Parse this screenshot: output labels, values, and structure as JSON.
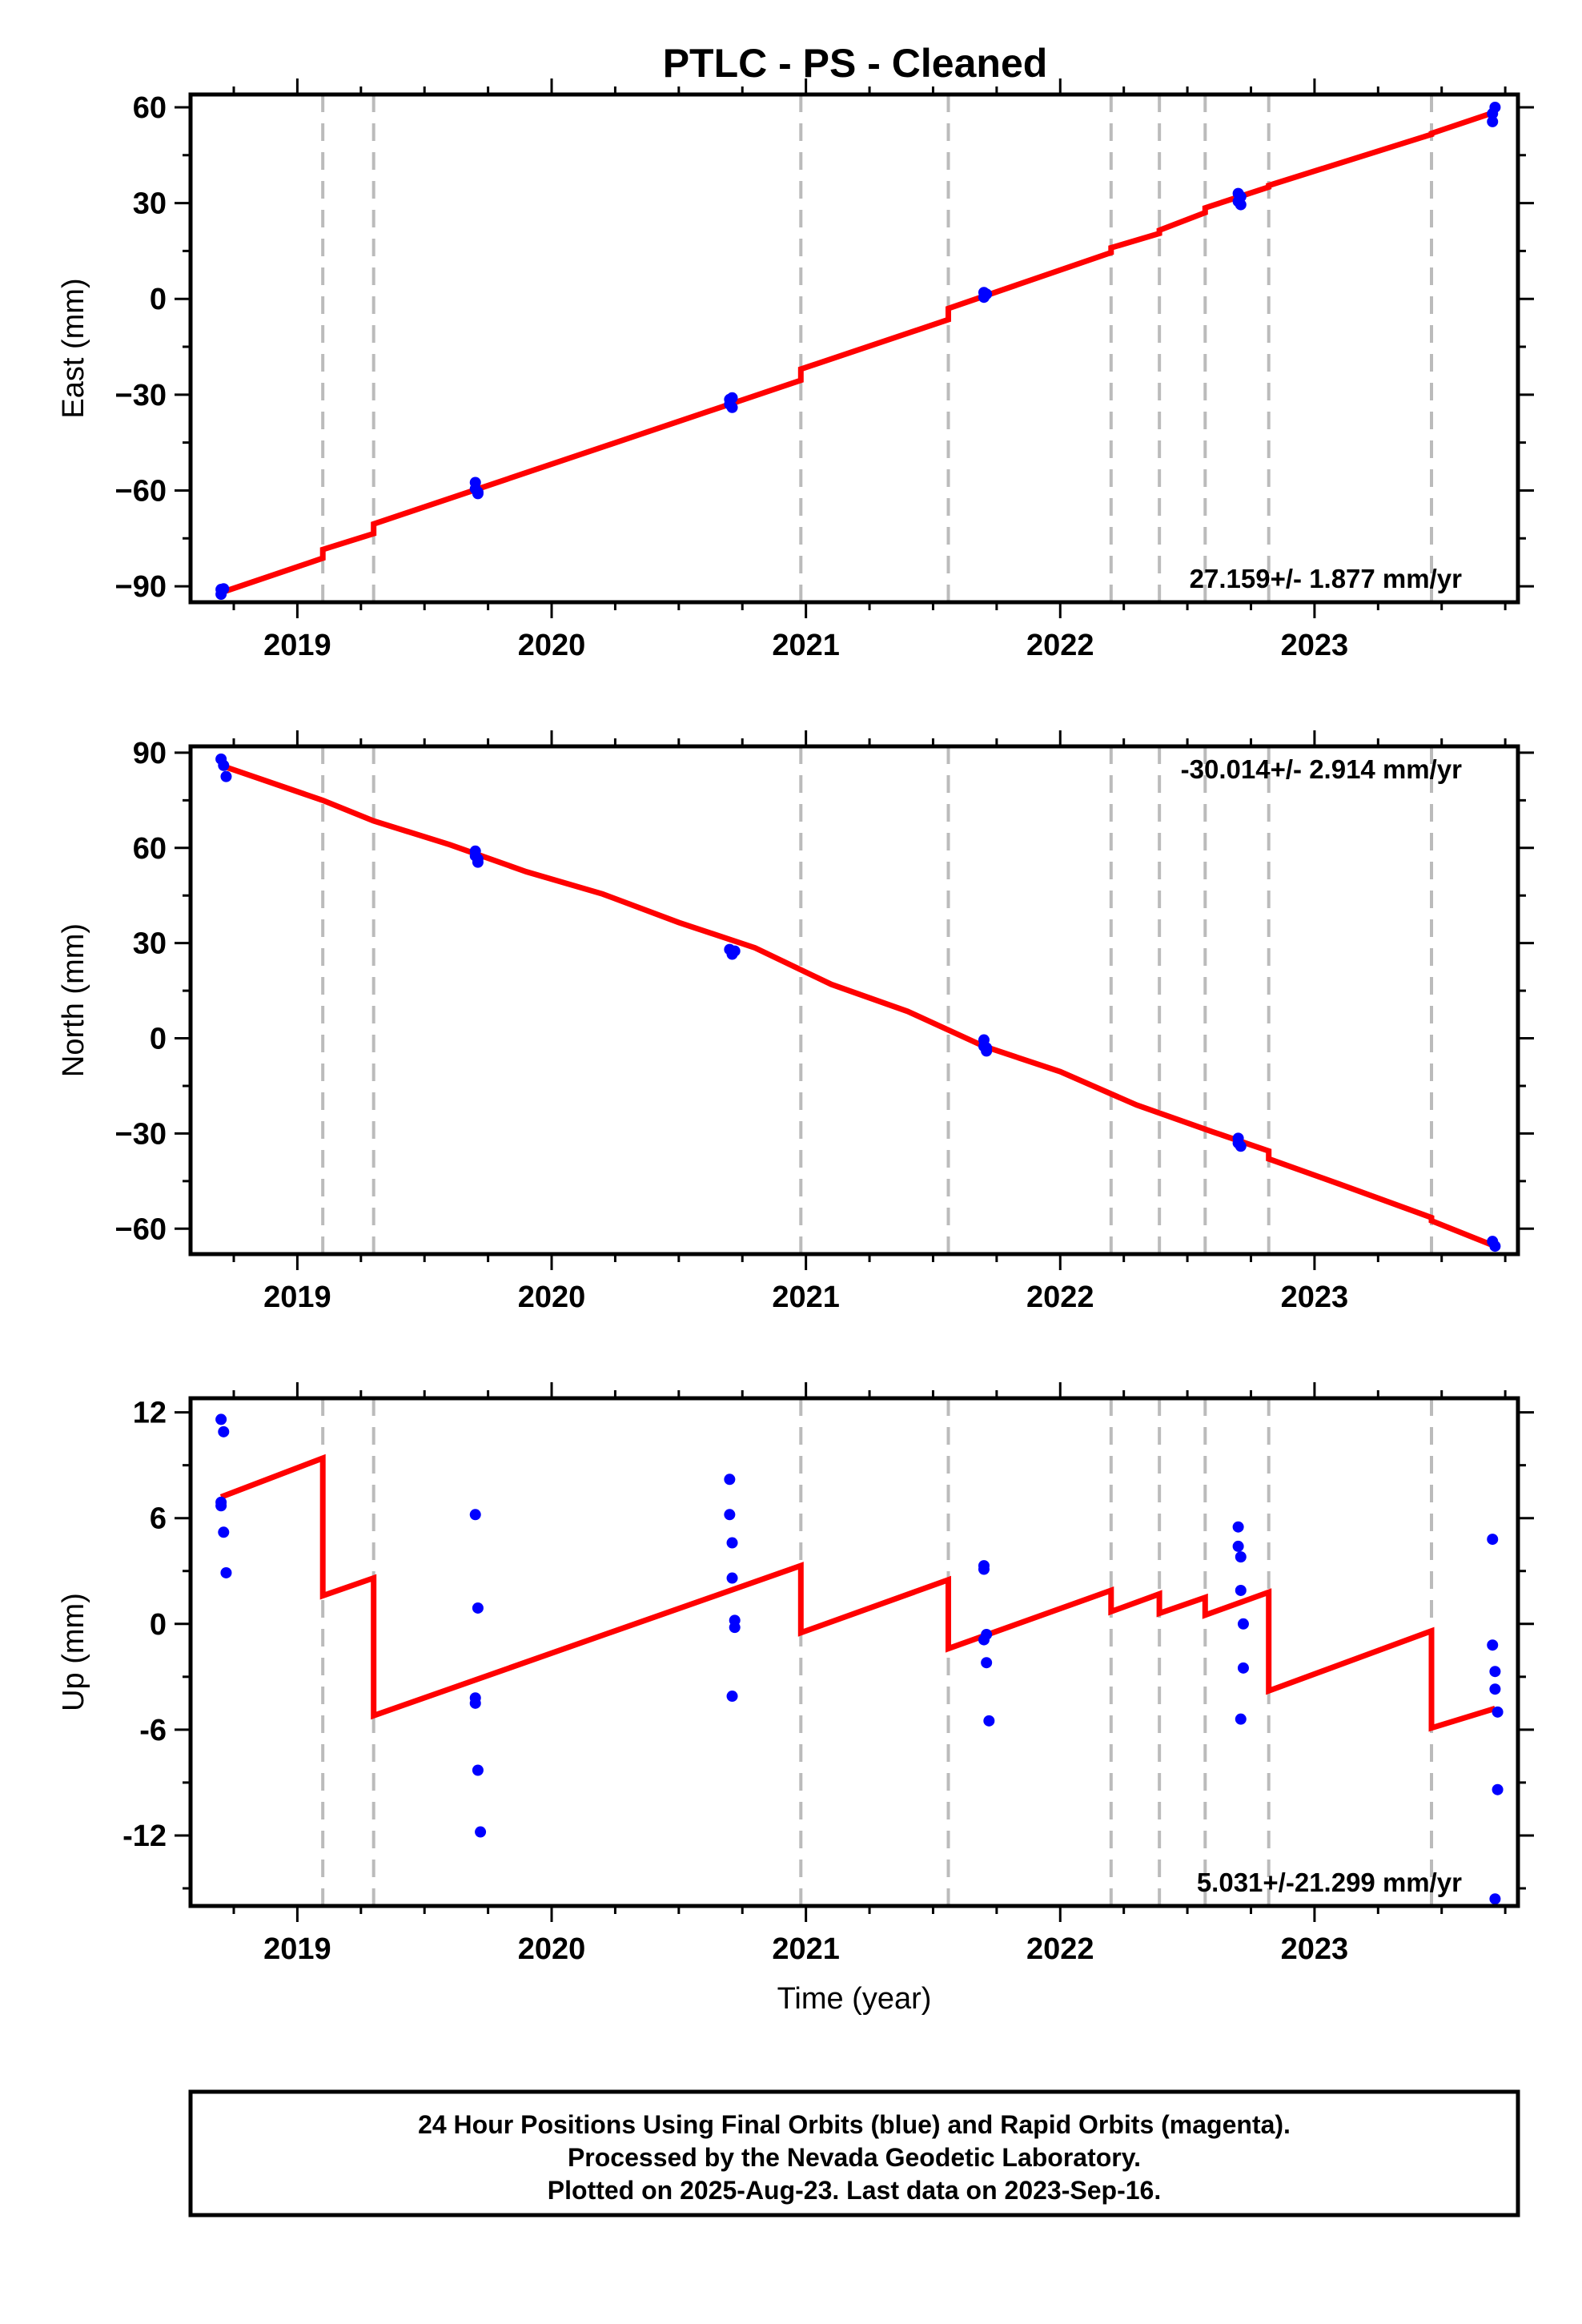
{
  "title": "PTLC  - PS - Cleaned",
  "footer": {
    "lines": [
      "24 Hour Positions Using Final Orbits (blue) and Rapid Orbits (magenta).",
      "Processed by the Nevada Geodetic Laboratory.",
      "Plotted on 2025-Aug-23. Last data on 2023-Sep-16."
    ]
  },
  "colors": {
    "final_orbit_points": "#0000ff",
    "rapid_orbit_points": "#ff00ff",
    "model_line": "#ff0000",
    "offset_lines": "#bbbbbb",
    "axes": "#000000"
  },
  "chart_data": [
    {
      "type": "scatter",
      "panel": "east",
      "ylabel": "East (mm)",
      "xlabel": "",
      "rate_text": "27.159+/- 1.877 mm/yr",
      "xlim": [
        2018.58,
        2023.8
      ],
      "ylim": [
        -95,
        64
      ],
      "xticks": [
        2019,
        2020,
        2021,
        2022,
        2023
      ],
      "xtick_labels": [
        "2019",
        "2020",
        "2021",
        "2022",
        "2023"
      ],
      "yticks": [
        -90,
        -60,
        -30,
        0,
        30,
        60
      ],
      "ytick_labels": [
        "−90",
        "−60",
        "−30",
        "0",
        "30",
        "60"
      ],
      "offset_epochs": [
        2019.1,
        2019.3,
        2020.98,
        2021.56,
        2022.2,
        2022.39,
        2022.57,
        2022.82,
        2023.46
      ],
      "points": {
        "x": [
          2018.7,
          2018.7,
          2018.71,
          2019.7,
          2019.7,
          2019.71,
          2019.71,
          2020.7,
          2020.7,
          2020.71,
          2020.71,
          2021.7,
          2021.7,
          2021.71,
          2022.7,
          2022.7,
          2022.71,
          2022.71,
          2023.7,
          2023.7,
          2023.71
        ],
        "y": [
          -91,
          -92.5,
          -90.8,
          -57.5,
          -59.5,
          -60.5,
          -61,
          -31.5,
          -33,
          -34,
          -31,
          0.5,
          2,
          1.5,
          33,
          30.5,
          29.5,
          32,
          58,
          55.5,
          60
        ]
      },
      "model_line": {
        "x": [
          2018.7,
          2019.1,
          2019.1,
          2019.3,
          2019.3,
          2020.98,
          2020.98,
          2021.56,
          2021.56,
          2022.2,
          2022.2,
          2022.39,
          2022.39,
          2022.57,
          2022.57,
          2022.82,
          2022.82,
          2023.46,
          2023.46,
          2023.71
        ],
        "y": [
          -92,
          -81.2,
          -78.5,
          -73.5,
          -70.5,
          -25.5,
          -22,
          -6.5,
          -3,
          14.5,
          16,
          20.5,
          21.5,
          27,
          28.5,
          35,
          35.5,
          51.5,
          51.8,
          58.5
        ]
      }
    },
    {
      "type": "scatter",
      "panel": "north",
      "ylabel": "North (mm)",
      "xlabel": "",
      "rate_text": "-30.014+/- 2.914 mm/yr",
      "xlim": [
        2018.58,
        2023.8
      ],
      "ylim": [
        -68,
        92
      ],
      "xticks": [
        2019,
        2020,
        2021,
        2022,
        2023
      ],
      "xtick_labels": [
        "2019",
        "2020",
        "2021",
        "2022",
        "2023"
      ],
      "yticks": [
        -60,
        -30,
        0,
        30,
        60,
        90
      ],
      "ytick_labels": [
        "−60",
        "−30",
        "0",
        "30",
        "60",
        "90"
      ],
      "offset_epochs": [
        2019.1,
        2019.3,
        2020.98,
        2021.56,
        2022.2,
        2022.39,
        2022.57,
        2022.82,
        2023.46
      ],
      "points": {
        "x": [
          2018.7,
          2018.71,
          2018.72,
          2019.7,
          2019.7,
          2019.71,
          2019.71,
          2020.7,
          2020.71,
          2020.72,
          2021.7,
          2021.7,
          2021.71,
          2021.71,
          2022.7,
          2022.7,
          2022.71,
          2023.7,
          2023.71
        ],
        "y": [
          88,
          86,
          82.5,
          59,
          57.5,
          55.5,
          56.5,
          28,
          26.5,
          27.5,
          -0.5,
          -2.5,
          -4,
          -3,
          -31.5,
          -33,
          -34,
          -64,
          -65.5
        ]
      },
      "model_line": {
        "x": [
          2018.7,
          2019.1,
          2019.3,
          2019.6,
          2019.9,
          2020.2,
          2020.5,
          2020.8,
          2021.1,
          2021.4,
          2021.7,
          2022.0,
          2022.3,
          2022.6,
          2022.82,
          2022.82,
          2023.1,
          2023.46,
          2023.46,
          2023.71
        ],
        "y": [
          86,
          75,
          68.5,
          61,
          52.5,
          45.5,
          36.5,
          28.5,
          17,
          8.5,
          -2.5,
          -10.5,
          -21,
          -29.5,
          -35.5,
          -38,
          -46,
          -56.5,
          -57.5,
          -65.5
        ]
      }
    },
    {
      "type": "scatter",
      "panel": "up",
      "ylabel": "Up (mm)",
      "xlabel": "Time (year)",
      "rate_text": "5.031+/-21.299 mm/yr",
      "xlim": [
        2018.58,
        2023.8
      ],
      "ylim": [
        -16,
        12.8
      ],
      "xticks": [
        2019,
        2020,
        2021,
        2022,
        2023
      ],
      "xtick_labels": [
        "2019",
        "2020",
        "2021",
        "2022",
        "2023"
      ],
      "yticks": [
        -12,
        -6,
        0,
        6,
        12
      ],
      "ytick_labels": [
        "-12",
        "-6",
        "0",
        "6",
        "12"
      ],
      "offset_epochs": [
        2019.1,
        2019.3,
        2020.98,
        2021.56,
        2022.2,
        2022.39,
        2022.57,
        2022.82,
        2023.46
      ],
      "points": {
        "x": [
          2018.7,
          2018.71,
          2018.7,
          2018.7,
          2018.71,
          2018.72,
          2019.7,
          2019.71,
          2019.7,
          2019.7,
          2019.71,
          2019.72,
          2020.7,
          2020.7,
          2020.71,
          2020.71,
          2020.72,
          2020.72,
          2020.71,
          2021.7,
          2021.7,
          2021.71,
          2021.7,
          2021.71,
          2021.72,
          2022.7,
          2022.7,
          2022.71,
          2022.71,
          2022.72,
          2022.72,
          2022.71,
          2023.7,
          2023.7,
          2023.71,
          2023.71,
          2023.72,
          2023.72,
          2023.71
        ],
        "y": [
          11.6,
          10.9,
          6.9,
          6.7,
          5.2,
          2.9,
          6.2,
          0.9,
          -4.2,
          -4.5,
          -8.3,
          -11.8,
          8.2,
          6.2,
          4.6,
          2.6,
          0.2,
          -0.2,
          -4.1,
          3.3,
          3.1,
          -0.6,
          -0.9,
          -2.2,
          -5.5,
          5.5,
          4.4,
          3.8,
          1.9,
          0.0,
          -2.5,
          -5.4,
          4.8,
          -1.2,
          -2.7,
          -3.7,
          -5.0,
          -9.4,
          -15.6
        ]
      },
      "model_line": {
        "x": [
          2018.7,
          2019.1,
          2019.1,
          2019.3,
          2019.3,
          2020.98,
          2020.98,
          2021.56,
          2021.56,
          2022.2,
          2022.2,
          2022.39,
          2022.39,
          2022.57,
          2022.57,
          2022.82,
          2022.82,
          2023.46,
          2023.46,
          2023.71
        ],
        "y": [
          7.2,
          9.4,
          1.6,
          2.6,
          -5.2,
          3.3,
          -0.5,
          2.5,
          -1.4,
          1.9,
          0.7,
          1.7,
          0.6,
          1.5,
          0.5,
          1.8,
          -3.8,
          -0.4,
          -5.9,
          -4.8
        ]
      }
    }
  ]
}
